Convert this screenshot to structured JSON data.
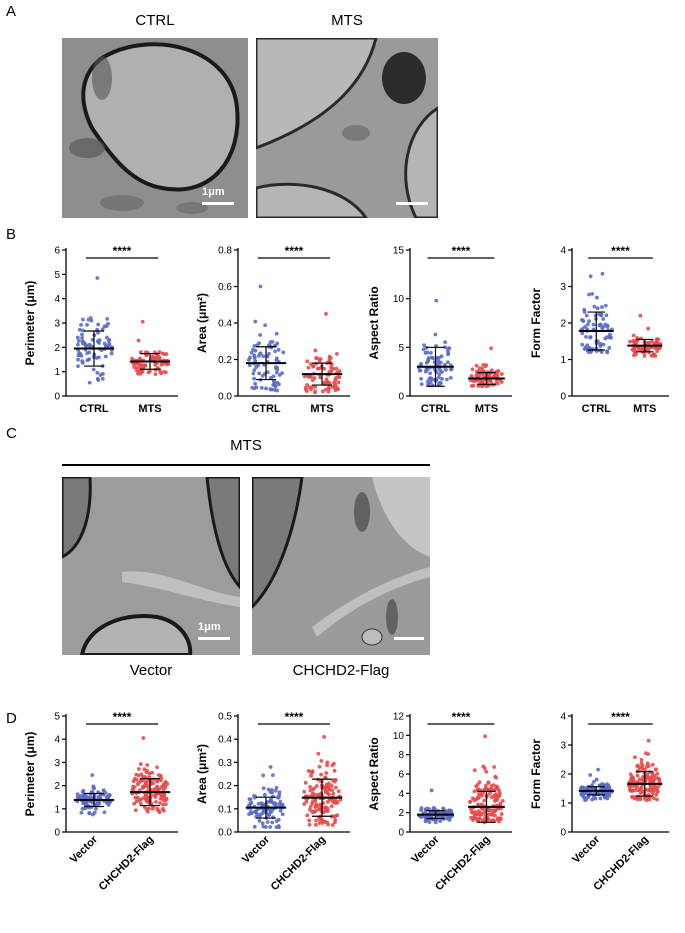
{
  "panels": {
    "a": "A",
    "b": "B",
    "c": "C",
    "d": "D"
  },
  "row_a": {
    "left_label": "CTRL",
    "right_label": "MTS",
    "scale_label": "1μm"
  },
  "row_c": {
    "header": "MTS",
    "left_label": "Vector",
    "right_label": "CHCHD2-Flag",
    "scale_label": "1μm"
  },
  "colors": {
    "group1": "#5a6bc7",
    "group2": "#e84a4a"
  },
  "chart_data": [
    {
      "type": "scatter",
      "significance": "****",
      "ylabel": "Perimeter (μm)",
      "categories": [
        "CTRL",
        "MTS"
      ],
      "ylim": [
        0,
        6
      ],
      "yticks": [
        0,
        1,
        2,
        3,
        4,
        5,
        6
      ],
      "groups": [
        {
          "name": "CTRL",
          "mean": 1.95,
          "sd": 0.72,
          "min": 0.55,
          "max": 4.85,
          "n": 80
        },
        {
          "name": "MTS",
          "mean": 1.42,
          "sd": 0.32,
          "min": 0.9,
          "max": 3.05,
          "n": 80
        }
      ]
    },
    {
      "type": "scatter",
      "significance": "****",
      "ylabel": "Area (μm²)",
      "categories": [
        "CTRL",
        "MTS"
      ],
      "ylim": [
        0,
        0.8
      ],
      "yticks": [
        0.0,
        0.2,
        0.4,
        0.6,
        0.8
      ],
      "groups": [
        {
          "name": "CTRL",
          "mean": 0.18,
          "sd": 0.09,
          "min": 0.03,
          "max": 0.6,
          "n": 80
        },
        {
          "name": "MTS",
          "mean": 0.12,
          "sd": 0.06,
          "min": 0.02,
          "max": 0.45,
          "n": 80
        }
      ]
    },
    {
      "type": "scatter",
      "significance": "****",
      "ylabel": "Aspect Ratio",
      "categories": [
        "CTRL",
        "MTS"
      ],
      "ylim": [
        0,
        15
      ],
      "yticks": [
        0,
        5,
        10,
        15
      ],
      "groups": [
        {
          "name": "CTRL",
          "mean": 3.0,
          "sd": 2.0,
          "min": 1.1,
          "max": 9.8,
          "n": 80
        },
        {
          "name": "MTS",
          "mean": 1.8,
          "sd": 0.6,
          "min": 1.0,
          "max": 4.9,
          "n": 80
        }
      ]
    },
    {
      "type": "scatter",
      "significance": "****",
      "ylabel": "Form Factor",
      "categories": [
        "CTRL",
        "MTS"
      ],
      "ylim": [
        0,
        4
      ],
      "yticks": [
        0,
        1,
        2,
        3,
        4
      ],
      "groups": [
        {
          "name": "CTRL",
          "mean": 1.78,
          "sd": 0.52,
          "min": 1.2,
          "max": 3.35,
          "n": 80
        },
        {
          "name": "MTS",
          "mean": 1.38,
          "sd": 0.17,
          "min": 1.1,
          "max": 2.2,
          "n": 80
        }
      ]
    },
    {
      "type": "scatter",
      "significance": "****",
      "ylabel": "Perimeter (μm)",
      "categories": [
        "Vector",
        "CHCHD2-Flag"
      ],
      "ylim": [
        0,
        5
      ],
      "yticks": [
        0,
        1,
        2,
        3,
        4,
        5
      ],
      "groups": [
        {
          "name": "Vector",
          "mean": 1.38,
          "sd": 0.28,
          "min": 0.75,
          "max": 2.45,
          "n": 100
        },
        {
          "name": "CHCHD2-Flag",
          "mean": 1.72,
          "sd": 0.58,
          "min": 0.85,
          "max": 4.05,
          "n": 140
        }
      ]
    },
    {
      "type": "scatter",
      "significance": "****",
      "ylabel": "Area (μm²)",
      "categories": [
        "Vector",
        "CHCHD2-Flag"
      ],
      "ylim": [
        0,
        0.5
      ],
      "yticks": [
        0.0,
        0.1,
        0.2,
        0.3,
        0.4,
        0.5
      ],
      "groups": [
        {
          "name": "Vector",
          "mean": 0.105,
          "sd": 0.045,
          "min": 0.02,
          "max": 0.28,
          "n": 100
        },
        {
          "name": "CHCHD2-Flag",
          "mean": 0.148,
          "sd": 0.08,
          "min": 0.03,
          "max": 0.41,
          "n": 140
        }
      ]
    },
    {
      "type": "scatter",
      "significance": "****",
      "ylabel": "Aspect Ratio",
      "categories": [
        "Vector",
        "CHCHD2-Flag"
      ],
      "ylim": [
        0,
        12
      ],
      "yticks": [
        0,
        2,
        4,
        6,
        8,
        10,
        12
      ],
      "groups": [
        {
          "name": "Vector",
          "mean": 1.8,
          "sd": 0.4,
          "min": 1.0,
          "max": 4.3,
          "n": 100
        },
        {
          "name": "CHCHD2-Flag",
          "mean": 2.6,
          "sd": 1.6,
          "min": 1.0,
          "max": 9.9,
          "n": 140
        }
      ]
    },
    {
      "type": "scatter",
      "significance": "****",
      "ylabel": "Form Factor",
      "categories": [
        "Vector",
        "CHCHD2-Flag"
      ],
      "ylim": [
        0,
        4
      ],
      "yticks": [
        0,
        1,
        2,
        3,
        4
      ],
      "groups": [
        {
          "name": "Vector",
          "mean": 1.42,
          "sd": 0.14,
          "min": 1.1,
          "max": 2.15,
          "n": 100
        },
        {
          "name": "CHCHD2-Flag",
          "mean": 1.66,
          "sd": 0.42,
          "min": 1.1,
          "max": 3.15,
          "n": 140
        }
      ]
    }
  ]
}
